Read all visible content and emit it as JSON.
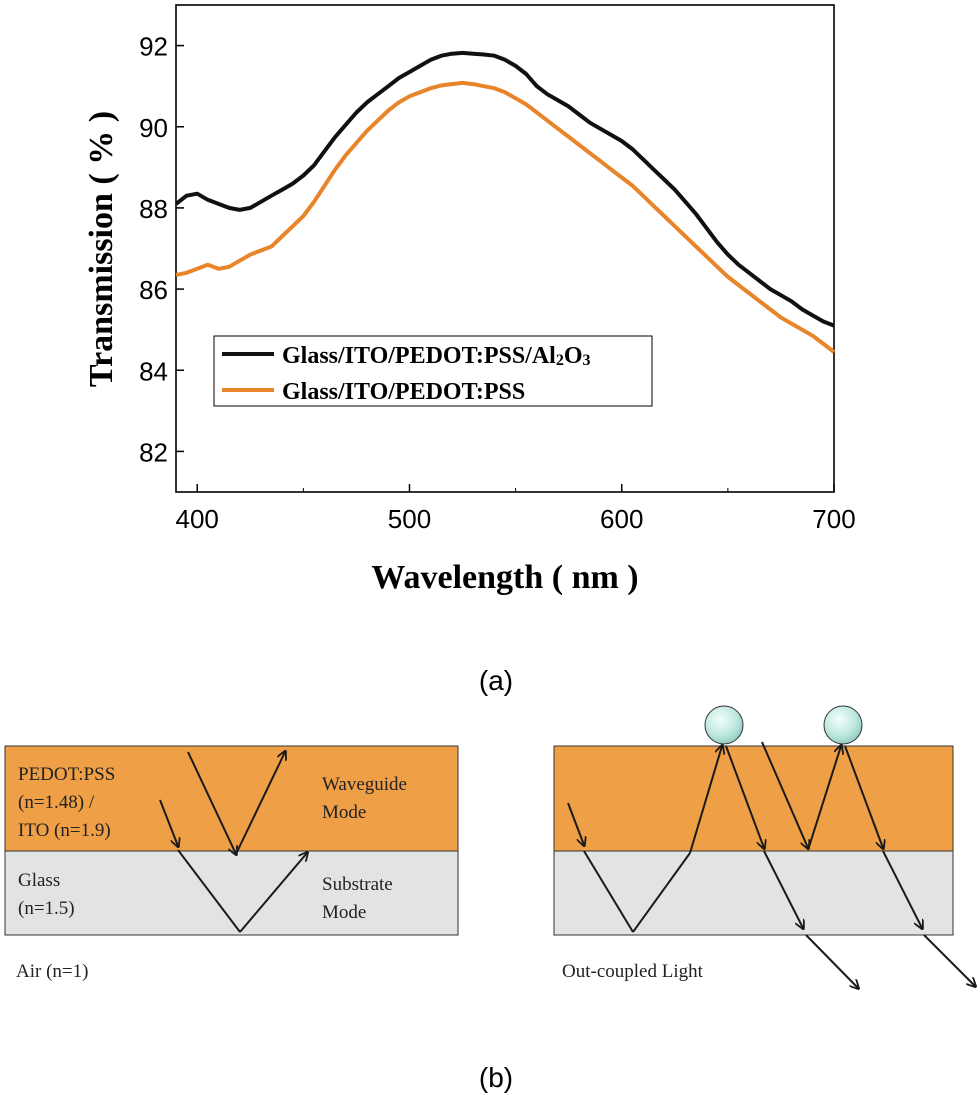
{
  "chart_data": {
    "type": "line",
    "xlabel": "Wavelength ( nm )",
    "ylabel": "Transmission ( % )",
    "xlim": [
      390,
      700
    ],
    "ylim": [
      81,
      93
    ],
    "xticks": [
      400,
      500,
      600,
      700
    ],
    "yticks": [
      82,
      84,
      86,
      88,
      90,
      92
    ],
    "legend_position": "lower-left",
    "grid": false,
    "series": [
      {
        "name_parts": [
          "Glass/ITO/PEDOT:PSS/Al",
          "2",
          "O",
          "3"
        ],
        "color": "#111111",
        "x": [
          390,
          395,
          400,
          405,
          410,
          415,
          420,
          425,
          430,
          435,
          440,
          445,
          450,
          455,
          460,
          465,
          470,
          475,
          480,
          485,
          490,
          495,
          500,
          505,
          510,
          515,
          520,
          525,
          530,
          535,
          540,
          545,
          550,
          555,
          560,
          565,
          570,
          575,
          580,
          585,
          590,
          595,
          600,
          605,
          610,
          615,
          620,
          625,
          630,
          635,
          640,
          645,
          650,
          655,
          660,
          665,
          670,
          675,
          680,
          685,
          690,
          695,
          700
        ],
        "y": [
          88.1,
          88.3,
          88.35,
          88.2,
          88.1,
          88.0,
          87.95,
          88.0,
          88.15,
          88.3,
          88.45,
          88.6,
          88.8,
          89.05,
          89.4,
          89.75,
          90.05,
          90.35,
          90.6,
          90.8,
          91.0,
          91.2,
          91.35,
          91.5,
          91.65,
          91.75,
          91.8,
          91.82,
          91.8,
          91.78,
          91.75,
          91.65,
          91.5,
          91.3,
          91.0,
          90.8,
          90.65,
          90.5,
          90.3,
          90.1,
          89.95,
          89.8,
          89.65,
          89.45,
          89.2,
          88.95,
          88.7,
          88.45,
          88.15,
          87.85,
          87.5,
          87.15,
          86.85,
          86.6,
          86.4,
          86.2,
          86.0,
          85.85,
          85.7,
          85.5,
          85.35,
          85.2,
          85.1
        ]
      },
      {
        "name": "Glass/ITO/PEDOT:PSS",
        "color": "#e8842a",
        "x": [
          390,
          395,
          400,
          405,
          410,
          415,
          420,
          425,
          430,
          435,
          440,
          445,
          450,
          455,
          460,
          465,
          470,
          475,
          480,
          485,
          490,
          495,
          500,
          505,
          510,
          515,
          520,
          525,
          530,
          535,
          540,
          545,
          550,
          555,
          560,
          565,
          570,
          575,
          580,
          585,
          590,
          595,
          600,
          605,
          610,
          615,
          620,
          625,
          630,
          635,
          640,
          645,
          650,
          655,
          660,
          665,
          670,
          675,
          680,
          685,
          690,
          695,
          700
        ],
        "y": [
          86.35,
          86.4,
          86.5,
          86.6,
          86.5,
          86.55,
          86.7,
          86.85,
          86.95,
          87.05,
          87.3,
          87.55,
          87.8,
          88.15,
          88.55,
          88.95,
          89.3,
          89.6,
          89.9,
          90.15,
          90.4,
          90.6,
          90.75,
          90.85,
          90.95,
          91.02,
          91.05,
          91.08,
          91.05,
          91.0,
          90.95,
          90.85,
          90.7,
          90.55,
          90.35,
          90.15,
          89.95,
          89.75,
          89.55,
          89.35,
          89.15,
          88.95,
          88.75,
          88.55,
          88.3,
          88.05,
          87.8,
          87.55,
          87.3,
          87.05,
          86.8,
          86.55,
          86.3,
          86.1,
          85.9,
          85.7,
          85.5,
          85.3,
          85.15,
          85.0,
          84.85,
          84.65,
          84.45
        ]
      }
    ]
  },
  "panel_labels": {
    "a": "(a)",
    "b": "(b)"
  },
  "diagram": {
    "layer_top_label_lines": [
      "PEDOT:PSS",
      "(n=1.48) /",
      "ITO (n=1.9)"
    ],
    "waveguide_label_lines": [
      "Waveguide",
      "Mode"
    ],
    "glass_label_lines": [
      "Glass",
      "(n=1.5)"
    ],
    "substrate_label_lines": [
      "Substrate",
      "Mode"
    ],
    "air_label": "Air (n=1)",
    "outcoupled_label": "Out-coupled Light",
    "colors": {
      "pedot_layer": "#ef9f45",
      "glass_layer": "#e2e4e4",
      "sphere": "#bfe8e0",
      "arrow": "#1a1a1a"
    }
  }
}
